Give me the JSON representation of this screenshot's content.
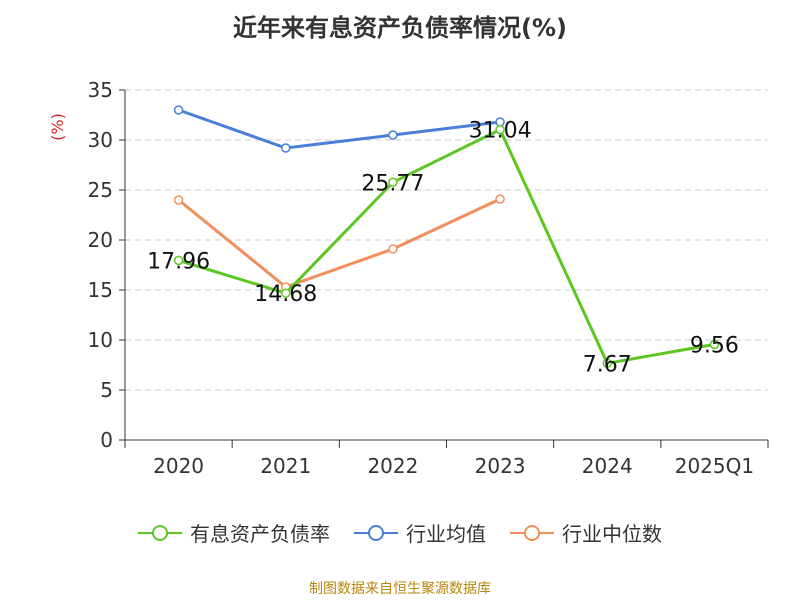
{
  "title": "近年来有息资产负债率情况(%)",
  "source": "制图数据来自恒生聚源数据库",
  "chart_data": {
    "type": "line",
    "title": "近年来有息资产负债率情况(%)",
    "ylabel": "(%)",
    "ylim": [
      0,
      35
    ],
    "yticks": [
      0,
      5,
      10,
      15,
      20,
      25,
      30,
      35
    ],
    "grid": true,
    "legend_position": "bottom",
    "categories": [
      "2020",
      "2021",
      "2022",
      "2023",
      "2024",
      "2025Q1"
    ],
    "series": [
      {
        "name": "有息资产负债率",
        "color": "#5cc623",
        "values": [
          17.96,
          14.68,
          25.77,
          31.04,
          7.67,
          9.56
        ],
        "labels": [
          "17.96",
          "14.68",
          "25.77",
          "31.04",
          "7.67",
          "9.56"
        ]
      },
      {
        "name": "行业均值",
        "color": "#4a7fd8",
        "values": [
          33.0,
          29.2,
          30.5,
          31.8,
          null,
          null
        ]
      },
      {
        "name": "行业中位数",
        "color": "#f28e5b",
        "values": [
          24.0,
          15.3,
          19.1,
          24.1,
          null,
          null
        ]
      }
    ]
  }
}
